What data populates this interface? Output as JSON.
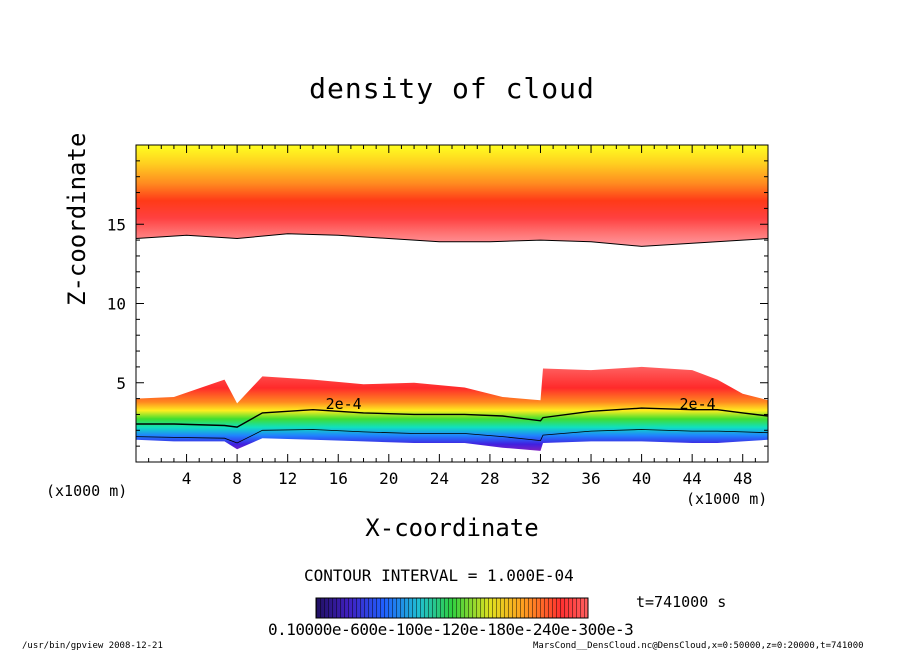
{
  "title": "density of cloud",
  "contour_interval": "CONTOUR INTERVAL = 1.000E-04",
  "time_label": "t=741000 s",
  "colorbar_labels": "0.10000e-600e-100e-120e-180e-240e-300e-3",
  "footer_left": "/usr/bin/gpview   2008-12-21",
  "footer_right": "MarsCond__DensCloud.nc@DensCloud,x=0:50000,z=0:20000,t=741000",
  "colors": {
    "contour_line": "#000000",
    "high": "#ff2020",
    "mid": "#22dd22",
    "low": "#3a10c0",
    "top": "#ffff30"
  },
  "chart_data": {
    "type": "contour",
    "title": "density of cloud",
    "xlabel": "X-coordinate",
    "ylabel": "Z-coordinate",
    "x_unit": "(x1000 m)",
    "xlim": [
      0,
      50
    ],
    "ylim": [
      0,
      20
    ],
    "x_ticks": [
      4,
      8,
      12,
      16,
      20,
      24,
      28,
      32,
      36,
      40,
      44,
      48
    ],
    "y_ticks": [
      5,
      10,
      15
    ],
    "contour_labels": [
      "2e-4",
      "2e-4"
    ],
    "contour_interval": 0.0001,
    "time_s": 741000,
    "upper_layer": {
      "top_z": 20,
      "bottom_x": [
        0,
        4,
        8,
        12,
        16,
        20,
        24,
        28,
        32,
        36,
        40,
        44,
        48,
        50
      ],
      "bottom_z": [
        14.1,
        14.3,
        14.1,
        14.4,
        14.3,
        14.1,
        13.9,
        13.9,
        14.0,
        13.9,
        13.6,
        13.8,
        14.0,
        14.1
      ]
    },
    "lower_layer": {
      "top_x": [
        0,
        3,
        7,
        8,
        10,
        14,
        18,
        22,
        26,
        29,
        32,
        32.2,
        36,
        40,
        44,
        46,
        48,
        50
      ],
      "top_z": [
        4.0,
        4.1,
        5.2,
        3.7,
        5.4,
        5.2,
        4.9,
        5.0,
        4.7,
        4.1,
        3.9,
        5.9,
        5.8,
        6.0,
        5.8,
        5.2,
        4.3,
        3.9
      ],
      "contour_2e4_z": [
        2.4,
        2.4,
        2.3,
        2.2,
        3.1,
        3.3,
        3.1,
        3.0,
        3.0,
        2.9,
        2.6,
        2.8,
        3.2,
        3.4,
        3.3,
        3.3,
        3.1,
        2.9
      ],
      "bottom_z": [
        1.4,
        1.3,
        1.3,
        0.8,
        1.5,
        1.4,
        1.3,
        1.2,
        1.2,
        0.9,
        0.7,
        1.2,
        1.3,
        1.3,
        1.2,
        1.2,
        1.3,
        1.4
      ]
    },
    "colorbar": {
      "min": 0.0001,
      "max": 0.0003,
      "label_values": [
        "0.10000e-6",
        "00e-1",
        "00e-1",
        "20e-1",
        "80e-2",
        "40e-3",
        "00e-3"
      ]
    }
  }
}
